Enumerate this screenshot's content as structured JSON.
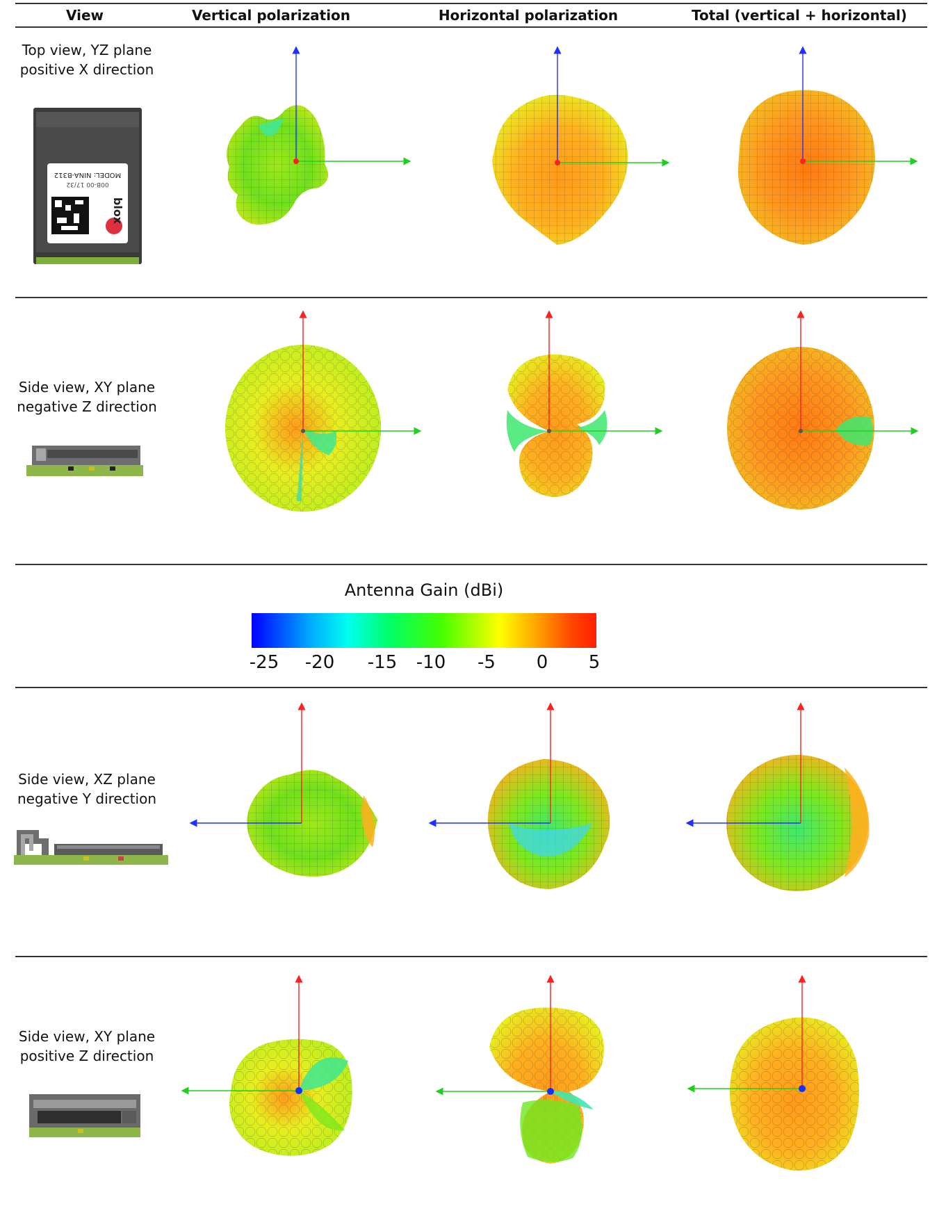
{
  "headers": {
    "view": "View",
    "vertical": "Vertical polarization",
    "horizontal": "Horizontal polarization",
    "total": "Total (vertical + horizontal)"
  },
  "rows": [
    {
      "line1": "Top view, YZ plane",
      "line2": "positive X direction"
    },
    {
      "line1": "Side view, XY plane",
      "line2": "negative Z direction"
    },
    {
      "line1": "Side view, XZ plane",
      "line2": "negative Y direction"
    },
    {
      "line1": "Side view, XY plane",
      "line2": "positive Z direction"
    }
  ],
  "module_label": {
    "model": "MODEL: NINA-B312",
    "serial": "00B-00 17/32",
    "brand": "blox"
  },
  "legend": {
    "title": "Antenna Gain (dBi)",
    "ticks": [
      "-25",
      "-20",
      "-15",
      "-10",
      "-5",
      "0",
      "5"
    ],
    "colors": [
      "#0000ff",
      "#00aaff",
      "#00ffee",
      "#00ff66",
      "#44ff00",
      "#ffff00",
      "#ffaa00",
      "#ff4400"
    ]
  },
  "axis_colors": {
    "x": "#ff2020",
    "y": "#20d020",
    "z": "#2030ff"
  }
}
